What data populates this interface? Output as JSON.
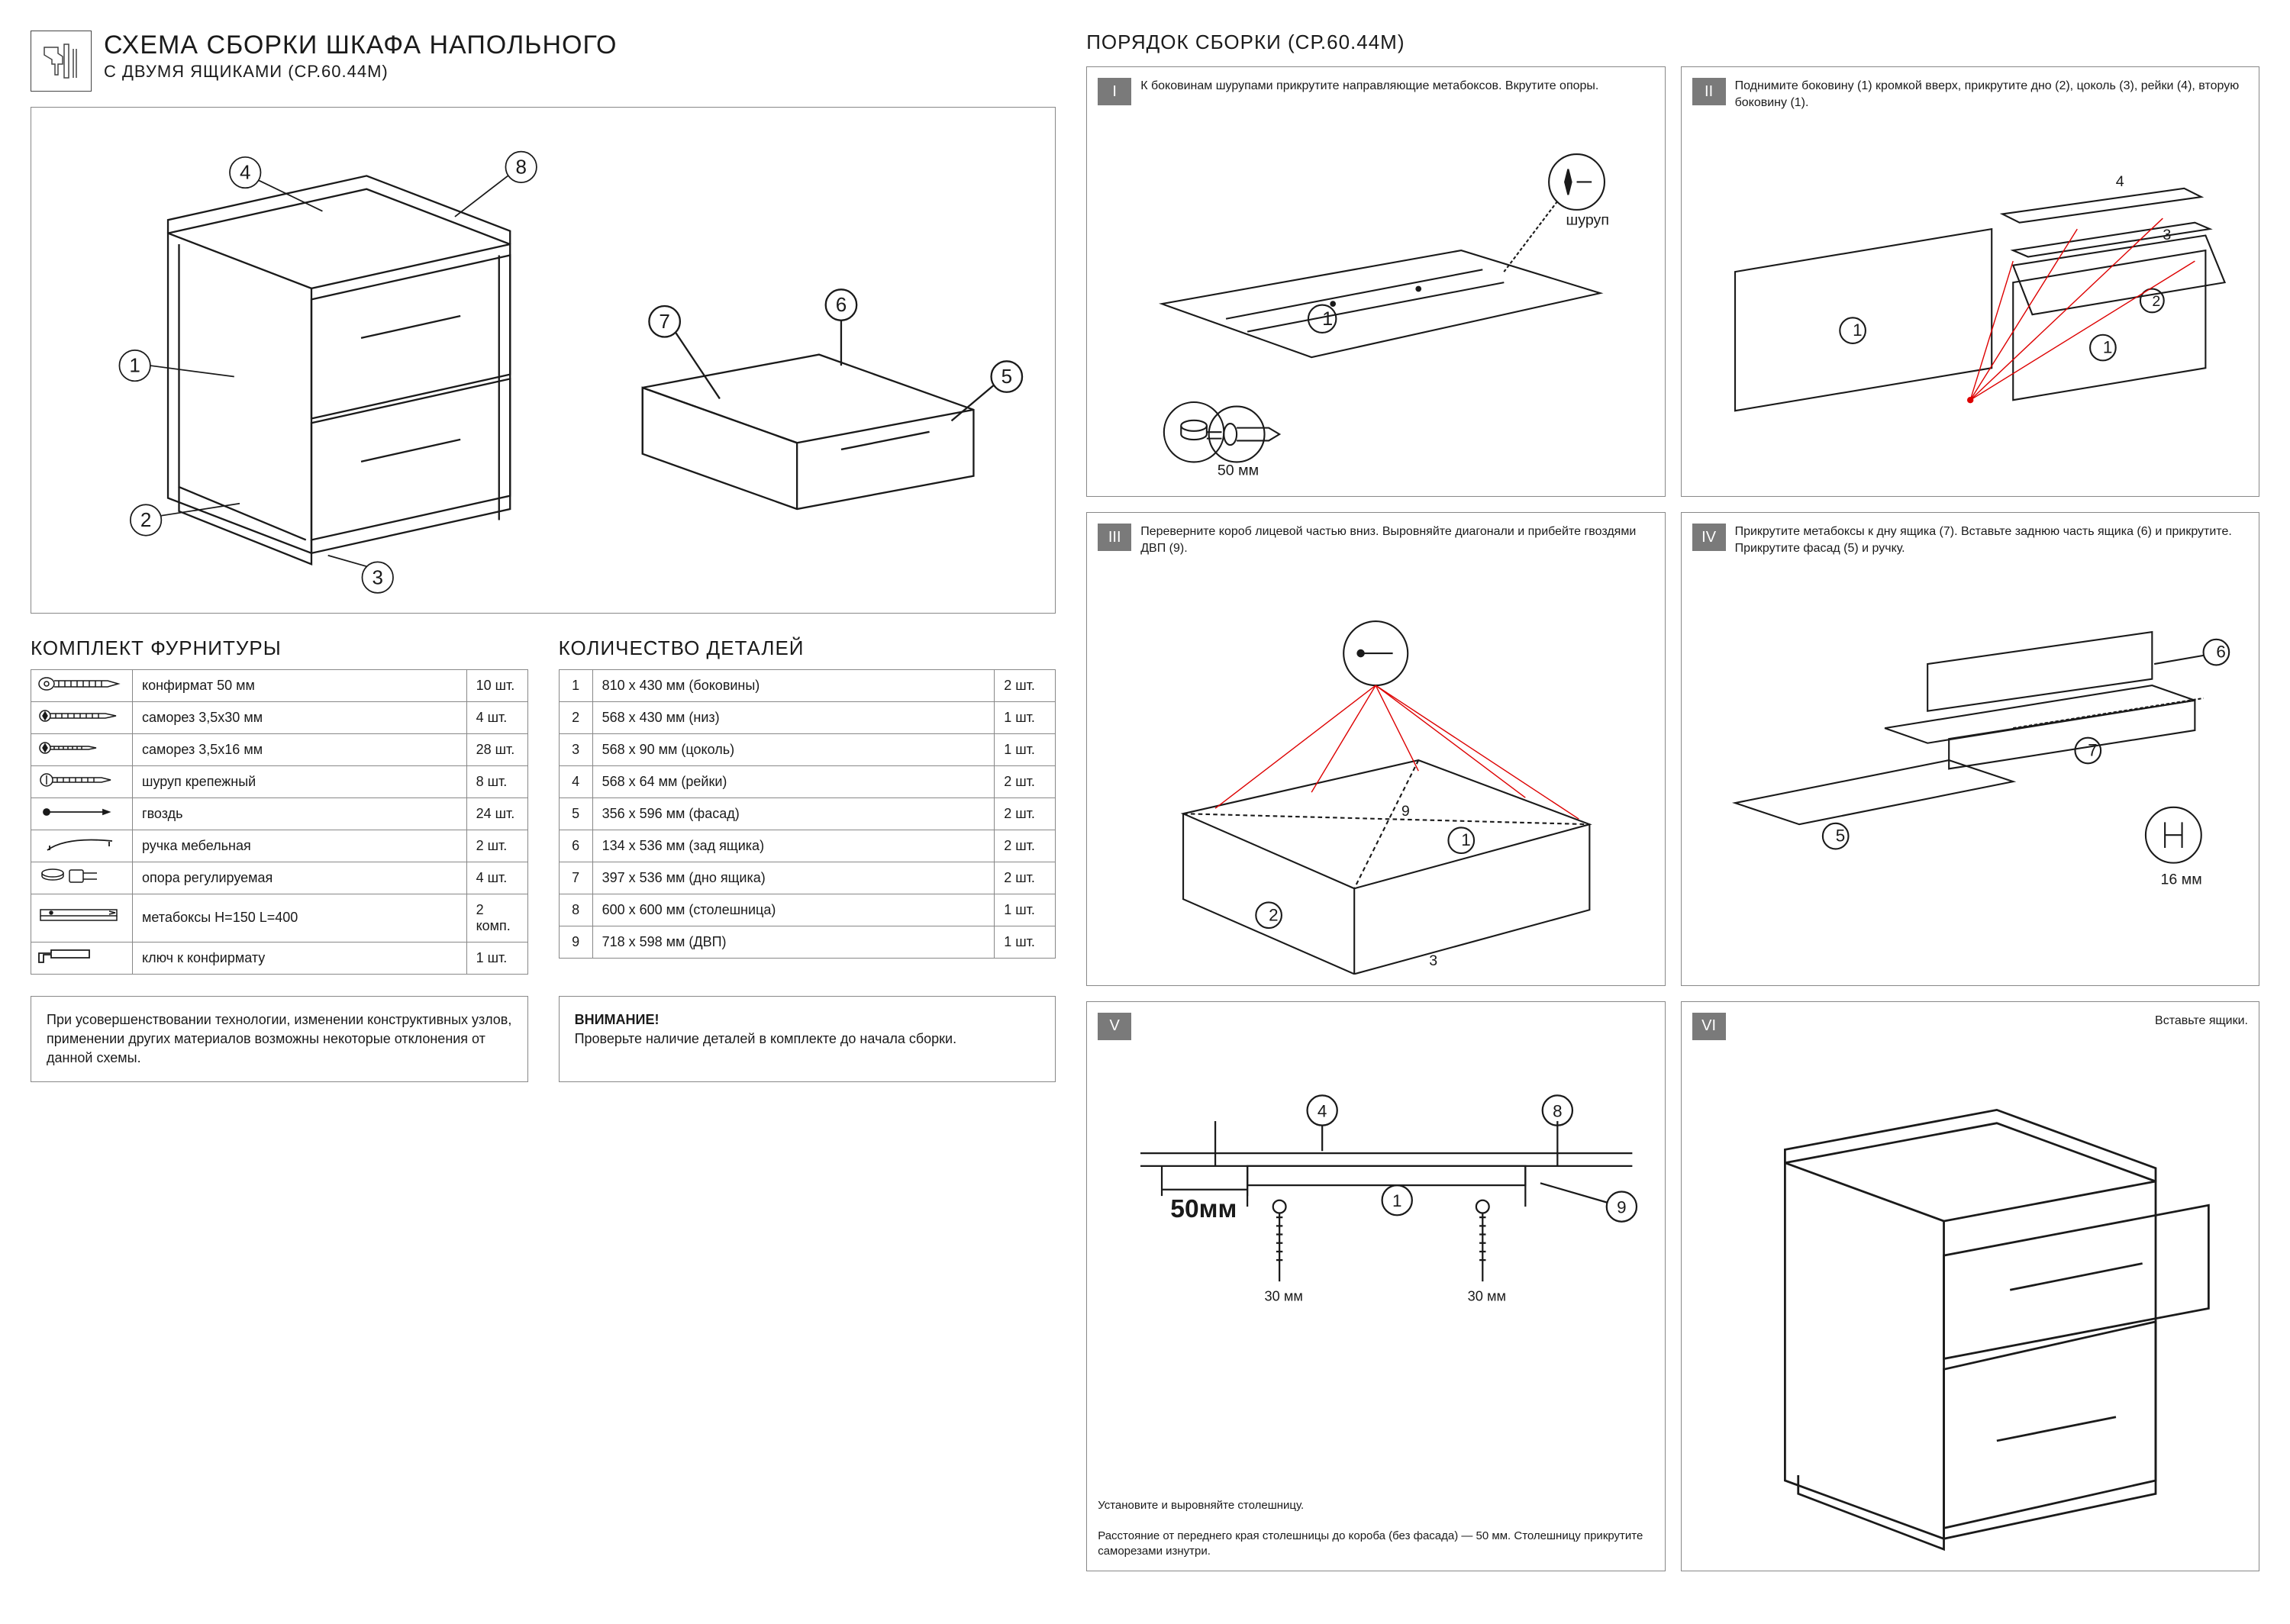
{
  "header": {
    "title": "СХЕМА СБОРКИ ШКАФА НАПОЛЬНОГО",
    "subtitle": "С ДВУМЯ ЯЩИКАМИ (СР.60.44М)"
  },
  "hardware": {
    "title": "КОМПЛЕКТ ФУРНИТУРЫ",
    "rows": [
      {
        "name": "конфирмат 50 мм",
        "qty": "10 шт."
      },
      {
        "name": "саморез 3,5х30 мм",
        "qty": "4 шт."
      },
      {
        "name": "саморез 3,5х16 мм",
        "qty": "28 шт."
      },
      {
        "name": "шуруп крепежный",
        "qty": "8 шт."
      },
      {
        "name": "гвоздь",
        "qty": "24 шт."
      },
      {
        "name": "ручка мебельная",
        "qty": "2 шт."
      },
      {
        "name": "опора регулируемая",
        "qty": "4 шт."
      },
      {
        "name": "метабоксы H=150 L=400",
        "qty": "2 комп."
      },
      {
        "name": "ключ к конфирмату",
        "qty": "1 шт."
      }
    ]
  },
  "parts": {
    "title": "КОЛИЧЕСТВО ДЕТАЛЕЙ",
    "rows": [
      {
        "n": "1",
        "name": "810 х 430 мм (боковины)",
        "qty": "2 шт."
      },
      {
        "n": "2",
        "name": "568 х 430 мм (низ)",
        "qty": "1 шт."
      },
      {
        "n": "3",
        "name": "568 х 90 мм (цоколь)",
        "qty": "1 шт."
      },
      {
        "n": "4",
        "name": "568 х 64 мм (рейки)",
        "qty": "2 шт."
      },
      {
        "n": "5",
        "name": "356 х 596 мм (фасад)",
        "qty": "2 шт."
      },
      {
        "n": "6",
        "name": "134 х 536 мм (зад ящика)",
        "qty": "2 шт."
      },
      {
        "n": "7",
        "name": "397 х 536 мм (дно ящика)",
        "qty": "2 шт."
      },
      {
        "n": "8",
        "name": "600 х 600 мм (столешница)",
        "qty": "1 шт."
      },
      {
        "n": "9",
        "name": "718 х 598 мм (ДВП)",
        "qty": "1 шт."
      }
    ]
  },
  "notes": {
    "left": "При усовершенствовании технологии, изменении конструктивных узлов, применении других материалов возможны некоторые отклонения от данной схемы.",
    "right_bold": "ВНИМАНИЕ!",
    "right_text": "Проверьте наличие деталей в комплекте до начала сборки."
  },
  "assembly": {
    "title": "ПОРЯДОК СБОРКИ (СР.60.44М)",
    "steps": [
      {
        "num": "I",
        "text": "К боковинам шурупами прикрутите направляющие метабоксов. Вкрутите опоры.",
        "labels": {
          "a": "шуруп",
          "b": "50 мм"
        }
      },
      {
        "num": "II",
        "text": "Поднимите боковину (1) кромкой вверх, прикрутите дно (2), цоколь (3), рейки (4), вторую боковину (1)."
      },
      {
        "num": "III",
        "text": "Переверните короб лицевой частью вниз. Выровняйте диагонали и прибейте гвоздями ДВП (9)."
      },
      {
        "num": "IV",
        "text": "Прикрутите метабоксы к дну ящика (7). Вставьте заднюю часть ящика (6) и прикрутите. Прикрутите фасад (5) и ручку.",
        "labels": {
          "a": "16 мм"
        }
      },
      {
        "num": "V",
        "text": "",
        "foot": "Установите и выровняйте столешницу.\n\nРасстояние от переднего края столешницы до короба (без фасада) — 50 мм. Столешницу прикрутите саморезами изнутри.",
        "labels": {
          "a": "50мм",
          "b": "30 мм",
          "c": "30 мм"
        }
      },
      {
        "num": "VI",
        "text": "Вставьте ящики.",
        "text_align": "right"
      }
    ]
  },
  "colors": {
    "line": "#1a1a1a",
    "border": "#888",
    "step_num_bg": "#7a7a7a"
  }
}
